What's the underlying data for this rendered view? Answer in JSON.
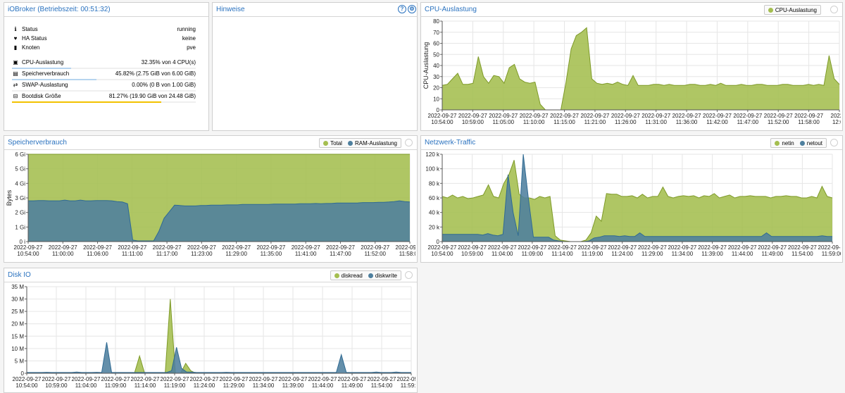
{
  "colors": {
    "green": "#a4be4f",
    "green_line": "#7e9a28",
    "blue": "#4e7f9e",
    "blue_line": "#2f6a93",
    "title": "#2a72bf",
    "bar_blue": "#b6d4ef",
    "bar_yellow": "#f2c200"
  },
  "status_panel": {
    "title": "iOBroker (Betriebszeit: 00:51:32)",
    "rows": [
      {
        "icon": "info-icon",
        "glyph": "ℹ",
        "label": "Status",
        "value": "running"
      },
      {
        "icon": "heartbeat-icon",
        "glyph": "♥",
        "label": "HA Status",
        "value": "keine"
      },
      {
        "icon": "building-icon",
        "glyph": "▮",
        "label": "Knoten",
        "value": "pve"
      }
    ],
    "usage": [
      {
        "icon": "cpu-icon",
        "glyph": "▣",
        "label": "CPU-Auslastung",
        "value": "32.35% von 4 CPU(s)",
        "fraction": 0.3235,
        "bar_color": "#b6d4ef"
      },
      {
        "icon": "memory-icon",
        "glyph": "▤",
        "label": "Speicherverbrauch",
        "value": "45.82% (2.75 GiB von 6.00 GiB)",
        "fraction": 0.4582,
        "bar_color": "#b6d4ef"
      },
      {
        "icon": "swap-icon",
        "glyph": "⇄",
        "label": "SWAP-Auslastung",
        "value": "0.00% (0 B von 1.00 GiB)",
        "fraction": 0.0,
        "bar_color": "#b6d4ef"
      },
      {
        "icon": "hdd-icon",
        "glyph": "⊟",
        "label": "Bootdisk Größe",
        "value": "81.27% (19.90 GiB von 24.48 GiB)",
        "fraction": 0.8127,
        "bar_color": "#f2c200"
      }
    ]
  },
  "notes_panel": {
    "title": "Hinweise",
    "help_glyph": "?",
    "gear_glyph": "⚙"
  },
  "chart_data": [
    {
      "id": "cpu",
      "type": "area",
      "title": "CPU-Auslastung",
      "ylabel": "CPU-Auslastung",
      "ylim": [
        0,
        80
      ],
      "yticks": [
        "0",
        "10",
        "20",
        "30",
        "40",
        "50",
        "60",
        "70",
        "80"
      ],
      "xticks": [
        "2022-09-27\n10:54:00",
        "2022-09-27\n10:59:00",
        "2022-09-27\n11:05:00",
        "2022-09-27\n11:10:00",
        "2022-09-27\n11:15:00",
        "2022-09-27\n11:21:00",
        "2022-09-27\n11:26:00",
        "2022-09-27\n11:31:00",
        "2022-09-27\n11:36:00",
        "2022-09-27\n11:42:00",
        "2022-09-27\n11:47:00",
        "2022-09-27\n11:52:00",
        "2022-09-27\n11:58:00",
        "2022-0\n12:03"
      ],
      "series": [
        {
          "name": "CPU-Auslastung",
          "color": "#a4be4f",
          "values": [
            22,
            23,
            28,
            33,
            23,
            23,
            24,
            48,
            30,
            24,
            31,
            30,
            24,
            38,
            41,
            28,
            25,
            24,
            25,
            5,
            0,
            0,
            0,
            0,
            25,
            55,
            67,
            70,
            74,
            28,
            24,
            23,
            24,
            23,
            25,
            23,
            22,
            31,
            22,
            22,
            22,
            23,
            23,
            22,
            23,
            22,
            22,
            22,
            23,
            23,
            22,
            22,
            23,
            22,
            24,
            22,
            22,
            22,
            23,
            22,
            22,
            23,
            23,
            22,
            22,
            22,
            23,
            23,
            22,
            22,
            22,
            23,
            22,
            23,
            22,
            49,
            28,
            23
          ]
        }
      ]
    },
    {
      "id": "memory",
      "type": "area",
      "title": "Speicherverbrauch",
      "ylabel": "Bytes",
      "ylim": [
        0,
        6
      ],
      "yticks": [
        "0 i",
        "1 Gi",
        "2 Gi",
        "3 Gi",
        "4 Gi",
        "5 Gi",
        "6 Gi"
      ],
      "xticks": [
        "2022-09-27\n10:54:00",
        "2022-09-27\n11:00:00",
        "2022-09-27\n11:06:00",
        "2022-09-27\n11:11:00",
        "2022-09-27\n11:17:00",
        "2022-09-27\n11:23:00",
        "2022-09-27\n11:29:00",
        "2022-09-27\n11:35:00",
        "2022-09-27\n11:41:00",
        "2022-09-27\n11:47:00",
        "2022-09-27\n11:52:00",
        "2022-09-27\n11:58:00"
      ],
      "series": [
        {
          "name": "Total",
          "color": "#a4be4f",
          "values": [
            6,
            6,
            6,
            6,
            6,
            6,
            6,
            6,
            6,
            6,
            6,
            6,
            6,
            6,
            6,
            6,
            6,
            6,
            6,
            6,
            6,
            6,
            6,
            6,
            6,
            6,
            6,
            6,
            6,
            6,
            6,
            6,
            6,
            6,
            6,
            6,
            6,
            6,
            6,
            6,
            6,
            6,
            6,
            6,
            6,
            6,
            6,
            6,
            6,
            6,
            6,
            6,
            6,
            6,
            6,
            6,
            6,
            6,
            6,
            6,
            6,
            6,
            6,
            6,
            6,
            6,
            6,
            6,
            6,
            6,
            6,
            6,
            6,
            6
          ]
        },
        {
          "name": "RAM-Auslastung",
          "color": "#4e7f9e",
          "values": [
            2.8,
            2.8,
            2.82,
            2.82,
            2.8,
            2.8,
            2.8,
            2.85,
            2.8,
            2.8,
            2.85,
            2.8,
            2.8,
            2.82,
            2.82,
            2.82,
            2.8,
            2.75,
            2.72,
            2.6,
            0.1,
            0.05,
            0.05,
            0.05,
            0.05,
            0.7,
            1.6,
            2.05,
            2.5,
            2.48,
            2.45,
            2.45,
            2.45,
            2.48,
            2.48,
            2.5,
            2.5,
            2.5,
            2.52,
            2.52,
            2.52,
            2.55,
            2.55,
            2.55,
            2.55,
            2.55,
            2.55,
            2.58,
            2.58,
            2.58,
            2.58,
            2.58,
            2.6,
            2.6,
            2.6,
            2.62,
            2.6,
            2.62,
            2.62,
            2.65,
            2.65,
            2.65,
            2.65,
            2.65,
            2.68,
            2.68,
            2.68,
            2.7,
            2.7,
            2.72,
            2.75,
            2.8,
            2.75,
            2.72
          ]
        }
      ]
    },
    {
      "id": "network",
      "type": "area",
      "title": "Netzwerk-Traffic",
      "ylabel": "",
      "ylim": [
        0,
        120
      ],
      "yticks": [
        "0",
        "20 k",
        "40 k",
        "60 k",
        "80 k",
        "100 k",
        "120 k"
      ],
      "xticks": [
        "2022-09-27\n10:54:00",
        "2022-09-27\n10:59:00",
        "2022-09-27\n11:04:00",
        "2022-09-27\n11:09:00",
        "2022-09-27\n11:14:00",
        "2022-09-27\n11:19:00",
        "2022-09-27\n11:24:00",
        "2022-09-27\n11:29:00",
        "2022-09-27\n11:34:00",
        "2022-09-27\n11:39:00",
        "2022-09-27\n11:44:00",
        "2022-09-27\n11:49:00",
        "2022-09-27\n11:54:00",
        "2022-09-27\n11:59:00"
      ],
      "series": [
        {
          "name": "netin",
          "color": "#a4be4f",
          "values": [
            62,
            60,
            64,
            60,
            62,
            59,
            60,
            62,
            64,
            78,
            62,
            60,
            80,
            92,
            112,
            65,
            60,
            60,
            58,
            62,
            60,
            62,
            8,
            2,
            1,
            0,
            0,
            0,
            2,
            12,
            35,
            28,
            66,
            65,
            65,
            62,
            62,
            63,
            60,
            65,
            60,
            62,
            62,
            75,
            62,
            60,
            62,
            63,
            62,
            63,
            60,
            63,
            62,
            66,
            60,
            62,
            64,
            60,
            62,
            62,
            63,
            62,
            62,
            62,
            60,
            62,
            62,
            63,
            62,
            62,
            60,
            60,
            62,
            60,
            76,
            62,
            60
          ]
        },
        {
          "name": "netout",
          "color": "#4e7f9e",
          "values": [
            10,
            10,
            10,
            10,
            10,
            10,
            10,
            10,
            9,
            11,
            9,
            8,
            10,
            92,
            40,
            8,
            125,
            60,
            6,
            6,
            6,
            6,
            2,
            1,
            0,
            0,
            0,
            0,
            0,
            1,
            5,
            6,
            8,
            8,
            8,
            7,
            8,
            7,
            7,
            12,
            7,
            7,
            7,
            7,
            7,
            7,
            7,
            7,
            7,
            7,
            7,
            7,
            7,
            7,
            7,
            7,
            7,
            7,
            7,
            7,
            7,
            7,
            7,
            7,
            12,
            7,
            7,
            7,
            7,
            7,
            7,
            7,
            7,
            7,
            7,
            8,
            7,
            7
          ]
        }
      ]
    },
    {
      "id": "diskio",
      "type": "area",
      "title": "Disk IO",
      "ylabel": "",
      "ylim": [
        0,
        35
      ],
      "yticks": [
        "0",
        "5 M",
        "10 M",
        "15 M",
        "20 M",
        "25 M",
        "30 M",
        "35 M"
      ],
      "xticks": [
        "2022-09-27\n10:54:00",
        "2022-09-27\n10:59:00",
        "2022-09-27\n11:04:00",
        "2022-09-27\n11:09:00",
        "2022-09-27\n11:14:00",
        "2022-09-27\n11:19:00",
        "2022-09-27\n11:24:00",
        "2022-09-27\n11:29:00",
        "2022-09-27\n11:34:00",
        "2022-09-27\n11:39:00",
        "2022-09-27\n11:44:00",
        "2022-09-27\n11:49:00",
        "2022-09-27\n11:54:00",
        "2022-09-27\n11:59:00"
      ],
      "series": [
        {
          "name": "diskread",
          "color": "#a4be4f",
          "values": [
            0,
            0,
            0,
            0,
            0,
            0,
            0,
            0,
            0,
            0,
            0,
            0,
            0,
            0,
            0,
            0,
            0,
            0,
            0,
            0,
            0,
            0,
            7,
            0,
            0,
            0,
            0,
            0,
            30,
            0,
            0,
            4,
            1,
            0,
            0,
            0,
            0,
            0,
            0,
            0,
            0,
            0,
            0,
            0,
            0,
            0,
            0,
            0,
            0,
            0,
            0,
            0,
            0,
            0,
            0,
            0,
            0,
            0,
            0,
            0,
            0,
            0,
            0,
            0,
            0,
            0,
            0,
            0,
            0,
            0,
            0,
            0,
            0,
            0,
            0,
            0
          ]
        },
        {
          "name": "diskwrite",
          "color": "#4e7f9e",
          "values": [
            0.3,
            0.3,
            0.3,
            0.3,
            0.4,
            0.3,
            0.3,
            0.3,
            0.3,
            0.3,
            0.5,
            0.3,
            0.3,
            0.3,
            0.4,
            0.3,
            12.5,
            0.3,
            0.3,
            0.3,
            0.3,
            0.3,
            0.3,
            0.3,
            0.3,
            0.3,
            0.3,
            0.3,
            0.3,
            1,
            10.5,
            2,
            0.5,
            0.5,
            0.3,
            0.3,
            0.3,
            0.3,
            0.3,
            0.3,
            0.4,
            0.3,
            0.3,
            0.3,
            0.3,
            0.3,
            0.3,
            0.3,
            0.3,
            0.3,
            0.3,
            0.3,
            0.3,
            0.3,
            0.3,
            0.3,
            0.3,
            0.3,
            0.3,
            0.3,
            0.3,
            0.3,
            0.3,
            7.5,
            0.3,
            0.3,
            0.3,
            0.3,
            0.3,
            0.3,
            0.5,
            0.3,
            0.3,
            0.3,
            0.5,
            0.3,
            0.3,
            0.3
          ]
        }
      ]
    }
  ]
}
